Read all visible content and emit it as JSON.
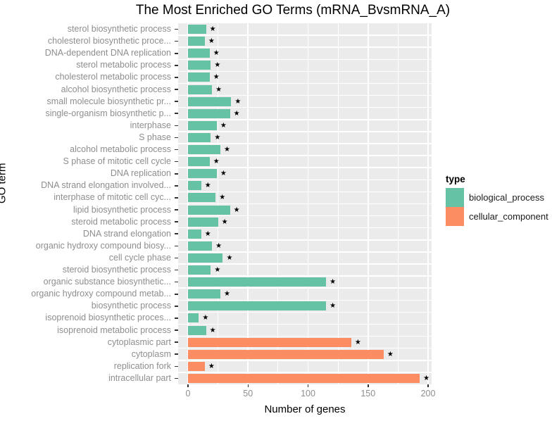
{
  "title": "The Most Enriched GO Terms (mRNA_BvsmRNA_A)",
  "x_axis": {
    "label": "Number of genes",
    "ticks": [
      0,
      50,
      100,
      150,
      200
    ],
    "minor_ticks": [
      25,
      75,
      125,
      175
    ]
  },
  "y_axis": {
    "label": "GO term"
  },
  "legend": {
    "title": "type",
    "entries": [
      {
        "label": "biological_process",
        "color": "#66C2A5"
      },
      {
        "label": "cellular_component",
        "color": "#FC8D62"
      }
    ]
  },
  "colors": {
    "biological_process": "#66C2A5",
    "cellular_component": "#FC8D62",
    "panel_background": "#EBEBEB",
    "gridline": "#FFFFFF",
    "axis_text": "#8E8E8E",
    "tick_mark": "#333333"
  },
  "significance_marker": "★",
  "chart_data": {
    "type": "bar",
    "orientation": "horizontal",
    "title": "The Most Enriched GO Terms (mRNA_BvsmRNA_A)",
    "xlabel": "Number of genes",
    "ylabel": "GO term",
    "xlim": [
      0,
      200
    ],
    "grid": true,
    "legend_position": "right",
    "items": [
      {
        "label": "sterol biosynthetic process",
        "value": 15,
        "type": "biological_process",
        "significant": true
      },
      {
        "label": "cholesterol biosynthetic proce...",
        "value": 14,
        "type": "biological_process",
        "significant": true
      },
      {
        "label": "DNA-dependent DNA replication",
        "value": 18,
        "type": "biological_process",
        "significant": true
      },
      {
        "label": "sterol metabolic process",
        "value": 19,
        "type": "biological_process",
        "significant": true
      },
      {
        "label": "cholesterol metabolic process",
        "value": 18,
        "type": "biological_process",
        "significant": true
      },
      {
        "label": "alcohol biosynthetic process",
        "value": 20,
        "type": "biological_process",
        "significant": true
      },
      {
        "label": "small molecule biosynthetic pr...",
        "value": 36,
        "type": "biological_process",
        "significant": true
      },
      {
        "label": "single-organism biosynthetic p...",
        "value": 35,
        "type": "biological_process",
        "significant": true
      },
      {
        "label": "interphase",
        "value": 24,
        "type": "biological_process",
        "significant": true
      },
      {
        "label": "S phase",
        "value": 19,
        "type": "biological_process",
        "significant": true
      },
      {
        "label": "alcohol metabolic process",
        "value": 27,
        "type": "biological_process",
        "significant": true
      },
      {
        "label": "S phase of mitotic cell cycle",
        "value": 18,
        "type": "biological_process",
        "significant": true
      },
      {
        "label": "DNA replication",
        "value": 24,
        "type": "biological_process",
        "significant": true
      },
      {
        "label": "DNA strand elongation involved...",
        "value": 11,
        "type": "biological_process",
        "significant": true
      },
      {
        "label": "interphase of mitotic cell cyc...",
        "value": 23,
        "type": "biological_process",
        "significant": true
      },
      {
        "label": "lipid biosynthetic process",
        "value": 35,
        "type": "biological_process",
        "significant": true
      },
      {
        "label": "steroid metabolic process",
        "value": 25,
        "type": "biological_process",
        "significant": true
      },
      {
        "label": "DNA strand elongation",
        "value": 11,
        "type": "biological_process",
        "significant": true
      },
      {
        "label": "organic hydroxy compound biosy...",
        "value": 20,
        "type": "biological_process",
        "significant": true
      },
      {
        "label": "cell cycle phase",
        "value": 29,
        "type": "biological_process",
        "significant": true
      },
      {
        "label": "steroid biosynthetic process",
        "value": 19,
        "type": "biological_process",
        "significant": true
      },
      {
        "label": "organic substance biosynthetic...",
        "value": 115,
        "type": "biological_process",
        "significant": true
      },
      {
        "label": "organic hydroxy compound metab...",
        "value": 27,
        "type": "biological_process",
        "significant": true
      },
      {
        "label": "biosynthetic process",
        "value": 115,
        "type": "biological_process",
        "significant": true
      },
      {
        "label": "isoprenoid biosynthetic proces...",
        "value": 9,
        "type": "biological_process",
        "significant": true
      },
      {
        "label": "isoprenoid metabolic process",
        "value": 15,
        "type": "biological_process",
        "significant": true
      },
      {
        "label": "cytoplasmic part",
        "value": 136,
        "type": "cellular_component",
        "significant": true
      },
      {
        "label": "cytoplasm",
        "value": 163,
        "type": "cellular_component",
        "significant": true
      },
      {
        "label": "replication fork",
        "value": 14,
        "type": "cellular_component",
        "significant": true
      },
      {
        "label": "intracellular part",
        "value": 193,
        "type": "cellular_component",
        "significant": true
      }
    ]
  }
}
